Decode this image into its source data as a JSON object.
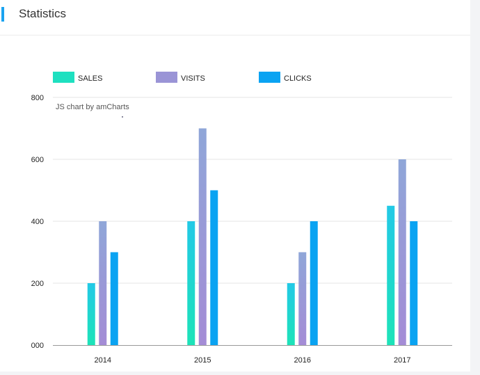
{
  "panel": {
    "title": "Statistics"
  },
  "colors": {
    "accent": "#1aa3f0",
    "sales": "#1ee0c0",
    "visits": "#9a94d6",
    "clicks": "#0aa3f2",
    "grid": "#e6e6e6",
    "axis": "#999999"
  },
  "chart_data": {
    "type": "bar",
    "credit": "JS chart by amCharts",
    "categories": [
      "2014",
      "2015",
      "2016",
      "2017"
    ],
    "series": [
      {
        "name": "SALES",
        "values": [
          200,
          400,
          200,
          450
        ]
      },
      {
        "name": "VISITS",
        "values": [
          400,
          700,
          300,
          600
        ]
      },
      {
        "name": "CLICKS",
        "values": [
          300,
          500,
          400,
          400
        ]
      }
    ],
    "ylim": [
      0,
      800
    ],
    "yticks": [
      "000",
      "200",
      "400",
      "600",
      "800"
    ],
    "grid": true,
    "legend_position": "top-left"
  }
}
